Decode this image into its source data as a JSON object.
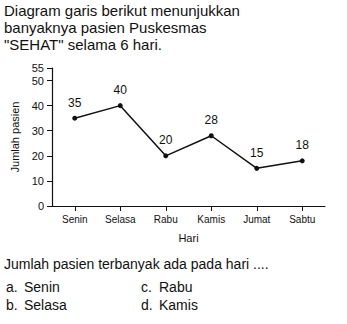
{
  "header": {
    "text": "Diagram garis berikut menunjukkan banyaknya pasien Puskesmas \"SEHAT\" selama 6 hari."
  },
  "chart_data": {
    "type": "line",
    "categories": [
      "Senin",
      "Selasa",
      "Rabu",
      "Kamis",
      "Jumat",
      "Sabtu"
    ],
    "values": [
      35,
      40,
      20,
      28,
      15,
      18
    ],
    "color": "#111111",
    "marker": "circle",
    "xlabel": "Hari",
    "ylabel": "Jumlah pasien",
    "ylim": [
      0,
      55
    ],
    "yticks": [
      0,
      10,
      20,
      30,
      40,
      50
    ],
    "grid": false,
    "data_labels": true
  },
  "question": {
    "text": "Jumlah pasien terbanyak ada pada hari ....",
    "choices": [
      {
        "letter": "a.",
        "text": "Senin"
      },
      {
        "letter": "b.",
        "text": "Selasa"
      },
      {
        "letter": "c.",
        "text": "Rabu"
      },
      {
        "letter": "d.",
        "text": "Kamis"
      }
    ]
  }
}
